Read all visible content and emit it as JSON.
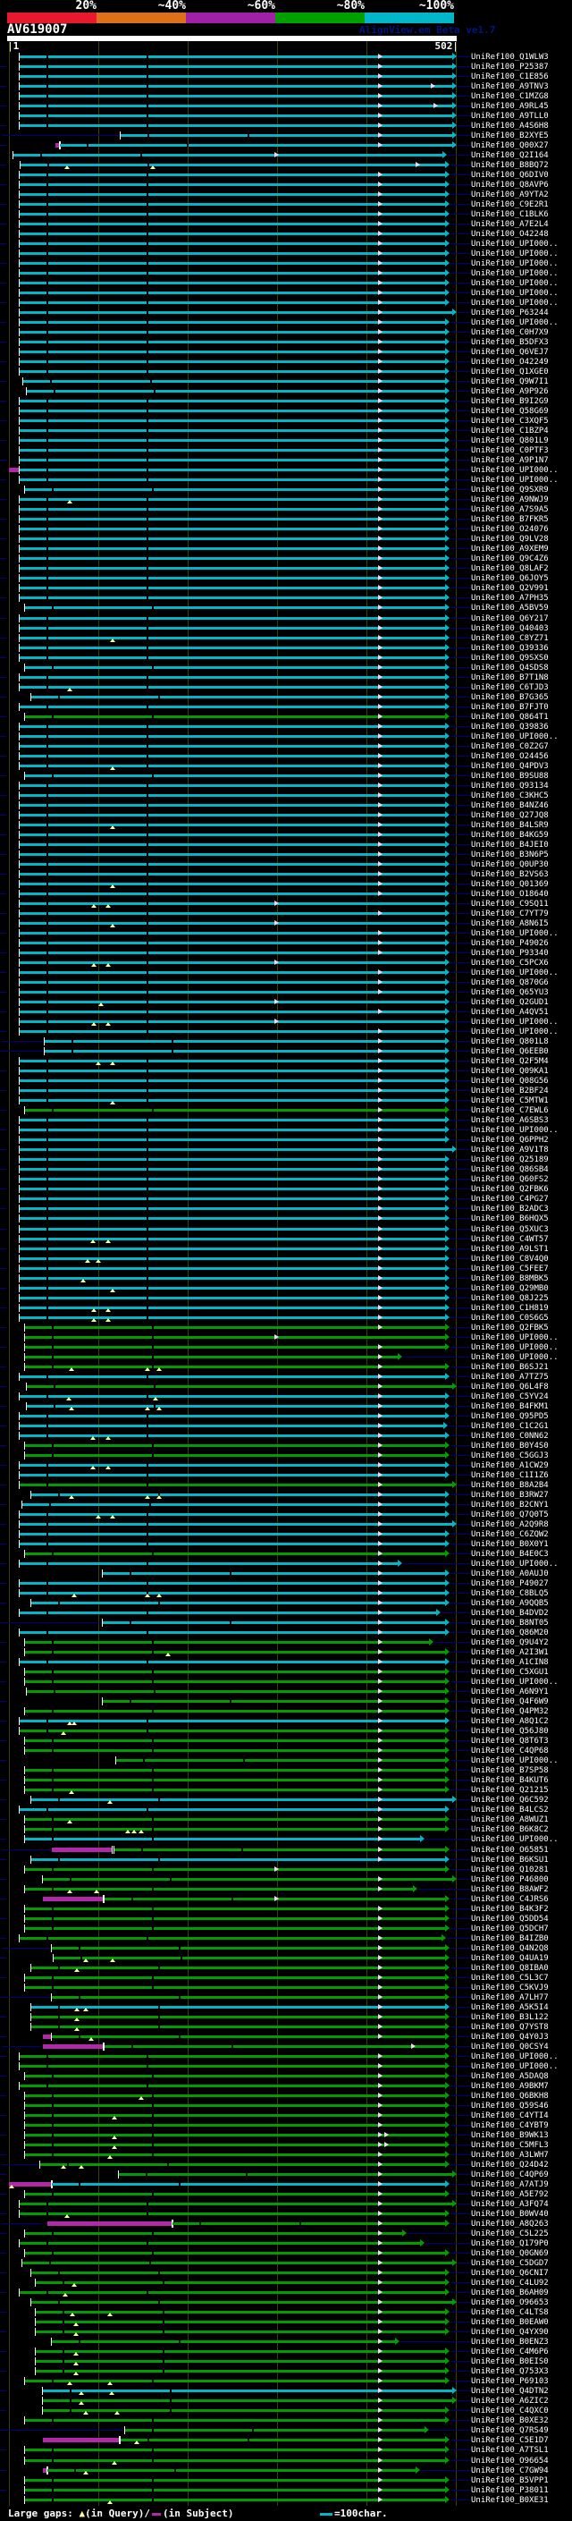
{
  "palette": {
    "bin20": "#e8192c",
    "bin40": "#dd7018",
    "bin60": "#a020a8",
    "bin80": "#00a000",
    "bin100": "#00b6c8",
    "hit_cyan": "#00b6c8",
    "hit_green": "#009d00",
    "gap_magenta": "#b128a8",
    "navy": "#000085",
    "gap_yellow": "#ffffa2",
    "grid": "#3f3f00",
    "text": "#ffffff",
    "app_text": "#001488"
  },
  "scale": {
    "labels": [
      "20%",
      "~40%",
      "~60%",
      "~80%",
      "~100%"
    ]
  },
  "header": {
    "query_id": "AV619007",
    "app_label": "AlignView.em Beta ve1.7",
    "axis_start": "|1",
    "axis_end": "502|"
  },
  "legend": {
    "prefix": "Large gaps:",
    "query_marker": "▲",
    "query_text": "(in Query)/",
    "subject_text": "(in Subject)",
    "scale_text": "=100char."
  },
  "chart_data": {
    "type": "table",
    "title": "AV619007",
    "x_axis": {
      "range": [
        1,
        502
      ],
      "start_label": "|1",
      "end_label": "502|",
      "units_note": "=100char."
    },
    "identity_bins": [
      "20%",
      "~40%",
      "~60%",
      "~80%",
      "~100%"
    ],
    "colors": "cccccccccccccccccccccccccccccccccccccccccccccccccccccccccccccccccccgcccccccccccccccccccccccccccccccccccccccgcccccccccccccccccccccgggggcgcccccggccgccccccgccccccccggcgggggcgggggggccggcgcggggggggggggggcgggggggggggggggggcggggggggggggggggggggcggggggg",
    "labels": [
      "UniRef100_Q1WLW3",
      "UniRef100_P25387",
      "UniRef100_C1E856",
      "UniRef100_A9TNV3",
      "UniRef100_C1MZG8",
      "UniRef100_A9RL45",
      "UniRef100_A9TLL0",
      "UniRef100_A4S6H8",
      "UniRef100_B2XYE5",
      "UniRef100_Q00X27",
      "UniRef100_Q2I164",
      "UniRef100_B8BQ72",
      "UniRef100_Q6DIV0",
      "UniRef100_Q8AVP6",
      "UniRef100_A9YTA2",
      "UniRef100_C9E2R1",
      "UniRef100_C1BLK6",
      "UniRef100_A7E2L4",
      "UniRef100_O42248",
      "UniRef100_UPI000..",
      "UniRef100_UPI000..",
      "UniRef100_UPI000..",
      "UniRef100_UPI000..",
      "UniRef100_UPI000..",
      "UniRef100_UPI000..",
      "UniRef100_UPI000..",
      "UniRef100_P63244",
      "UniRef100_UPI000..",
      "UniRef100_C0H7X9",
      "UniRef100_B5DFX3",
      "UniRef100_Q6VEJ7",
      "UniRef100_O42249",
      "UniRef100_Q1XGE0",
      "UniRef100_Q9W7I1",
      "UniRef100_A9P926",
      "UniRef100_B9I2G9",
      "UniRef100_Q58G69",
      "UniRef100_C3XQF5",
      "UniRef100_C1BZP4",
      "UniRef100_Q801L9",
      "UniRef100_C0PTF3",
      "UniRef100_A9P1N7",
      "UniRef100_UPI000..",
      "UniRef100_UPI000..",
      "UniRef100_Q9SXR9",
      "UniRef100_A9NWJ9",
      "UniRef100_A7S9A5",
      "UniRef100_B7FKR5",
      "UniRef100_O24076",
      "UniRef100_Q9LV28",
      "UniRef100_A9XEM9",
      "UniRef100_Q9C4Z6",
      "UniRef100_Q8LAF2",
      "UniRef100_Q6JOY5",
      "UniRef100_Q2V991",
      "UniRef100_A7PH35",
      "UniRef100_A5BV59",
      "UniRef100_Q6Y217",
      "UniRef100_Q40403",
      "UniRef100_C8YZ71",
      "UniRef100_Q39336",
      "UniRef100_Q9SXS0",
      "UniRef100_Q4SDS8",
      "UniRef100_B7T1N8",
      "UniRef100_C6TJD3",
      "UniRef100_B7G365",
      "UniRef100_B7FJT0",
      "UniRef100_Q864T1",
      "UniRef100_Q39836",
      "UniRef100_UPI000..",
      "UniRef100_C0Z2G7",
      "UniRef100_O24456",
      "UniRef100_Q4PDV3",
      "UniRef100_B9SU88",
      "UniRef100_Q93134",
      "UniRef100_C3KHC5",
      "UniRef100_B4NZ46",
      "UniRef100_Q27JQ8",
      "UniRef100_B4LSR9",
      "UniRef100_B4KG59",
      "UniRef100_B4JEI0",
      "UniRef100_B3N6P5",
      "UniRef100_Q0UP30",
      "UniRef100_B2VS63",
      "UniRef100_Q01369",
      "UniRef100_O18640",
      "UniRef100_C9SQ11",
      "UniRef100_C7YT79",
      "UniRef100_A8N6I5",
      "UniRef100_UPI000..",
      "UniRef100_P49026",
      "UniRef100_P93340",
      "UniRef100_C5PCX6",
      "UniRef100_UPI000..",
      "UniRef100_Q870G6",
      "UniRef100_Q65YU3",
      "UniRef100_Q2GUD1",
      "UniRef100_A4QV51",
      "UniRef100_UPI000..",
      "UniRef100_UPI000..",
      "UniRef100_Q801L8",
      "UniRef100_Q6EEB0",
      "UniRef100_Q2F5M4",
      "UniRef100_Q09KA1",
      "UniRef100_Q08G56",
      "UniRef100_B2BF24",
      "UniRef100_C5MTW1",
      "UniRef100_C7EWL6",
      "UniRef100_A6SBS3",
      "UniRef100_UPI000..",
      "UniRef100_Q6PPH2",
      "UniRef100_A9V1T8",
      "UniRef100_Q25189",
      "UniRef100_Q86SB4",
      "UniRef100_Q60FS2",
      "UniRef100_Q2FBK6",
      "UniRef100_C4PG27",
      "UniRef100_B2ADC3",
      "UniRef100_B6HQX5",
      "UniRef100_Q5XUC3",
      "UniRef100_C4WT57",
      "UniRef100_A9LST1",
      "UniRef100_C8V4Q0",
      "UniRef100_C5FEE7",
      "UniRef100_B8MBK5",
      "UniRef100_Q29MB0",
      "UniRef100_Q8J225",
      "UniRef100_C1H819",
      "UniRef100_C0S6G5",
      "UniRef100_Q2FBK5",
      "UniRef100_UPI000..",
      "UniRef100_UPI000..",
      "UniRef100_UPI000..",
      "UniRef100_B6SJ21",
      "UniRef100_A7TZ75",
      "UniRef100_Q6L4F8",
      "UniRef100_C5YV24",
      "UniRef100_B4FKM1",
      "UniRef100_Q95PD5",
      "UniRef100_C1C2G1",
      "UniRef100_C0NN62",
      "UniRef100_B0Y4S0",
      "UniRef100_C5GGJ3",
      "UniRef100_A1CW29",
      "UniRef100_C1I1Z6",
      "UniRef100_B8A2B4",
      "UniRef100_B3RW27",
      "UniRef100_B2CNY1",
      "UniRef100_Q7Q0T5",
      "UniRef100_A2Q9R8",
      "UniRef100_C6ZQW2",
      "UniRef100_B0X0Y1",
      "UniRef100_B4E0C3",
      "UniRef100_UPI000..",
      "UniRef100_A0AUJ0",
      "UniRef100_P49027",
      "UniRef100_C8BLQ5",
      "UniRef100_A9QQB5",
      "UniRef100_B4DVD2",
      "UniRef100_B8NT05",
      "UniRef100_Q86M20",
      "UniRef100_Q9U4Y2",
      "UniRef100_A2I3W1",
      "UniRef100_A1CIN8",
      "UniRef100_C5XGU1",
      "UniRef100_UPI000..",
      "UniRef100_A6N9Y1",
      "UniRef100_Q4F6W9",
      "UniRef100_Q4PM32",
      "UniRef100_A8Q1C2",
      "UniRef100_Q56J80",
      "UniRef100_Q8T6T3",
      "UniRef100_C4QP68",
      "UniRef100_UPI000..",
      "UniRef100_B7SP58",
      "UniRef100_B4KUT6",
      "UniRef100_Q21215",
      "UniRef100_Q6C592",
      "UniRef100_B4LCS2",
      "UniRef100_A8WUZ1",
      "UniRef100_B6K8C2",
      "UniRef100_UPI000..",
      "UniRef100_O65851",
      "UniRef100_B6KSU1",
      "UniRef100_Q10281",
      "UniRef100_P46800",
      "UniRef100_B8AWF2",
      "UniRef100_C4JRS6",
      "UniRef100_B4K3F2",
      "UniRef100_Q5DD54",
      "UniRef100_Q5DCH7",
      "UniRef100_B4IZB0",
      "UniRef100_Q4N2Q8",
      "UniRef100_Q4UA19",
      "UniRef100_Q8IBA0",
      "UniRef100_C5L3C7",
      "UniRef100_C5KVJ9",
      "UniRef100_A7LH77",
      "UniRef100_A5K5I4",
      "UniRef100_B3L122",
      "UniRef100_Q7YST8",
      "UniRef100_Q4Y0J3",
      "UniRef100_Q0CSY4",
      "UniRef100_UPI000..",
      "UniRef100_UPI000..",
      "UniRef100_A5DAQ8",
      "UniRef100_A9BKM7",
      "UniRef100_Q6BKH8",
      "UniRef100_Q59S46",
      "UniRef100_C4YTI4",
      "UniRef100_C4YBT9",
      "UniRef100_B9WK13",
      "UniRef100_C5MFL3",
      "UniRef100_A3LWH7",
      "UniRef100_Q24D42",
      "UniRef100_C4QP69",
      "UniRef100_A7ATJ9",
      "UniRef100_A5E792",
      "UniRef100_A3FQ74",
      "UniRef100_B0WV40",
      "UniRef100_A8Q263",
      "UniRef100_C5L225",
      "UniRef100_Q179P0",
      "UniRef100_Q0GN69",
      "UniRef100_C5DGD7",
      "UniRef100_Q6CNI7",
      "UniRef100_C4LU92",
      "UniRef100_B6AH09",
      "UniRef100_O96653",
      "UniRef100_C4LTS8",
      "UniRef100_B0EAW0",
      "UniRef100_Q4YX90",
      "UniRef100_B0ENZ3",
      "UniRef100_C4M6P6",
      "UniRef100_B0EIS0",
      "UniRef100_Q753X3",
      "UniRef100_P69103",
      "UniRef100_Q4DTN2",
      "UniRef100_A6ZIC2",
      "UniRef100_C4QXC0",
      "UniRef100_B0XE32",
      "UniRef100_Q7RS49",
      "UniRef100_C5E1D7",
      "UniRef100_A7TSL1",
      "UniRef100_O96654",
      "UniRef100_C7GW94",
      "UniRef100_B5VPP1",
      "UniRef100_P38011",
      "UniRef100_B0XE31"
    ],
    "overrides": {
      "1": {
        "e": 511
      },
      "2": {
        "e": 511
      },
      "3": {
        "e": 511
      },
      "4": {
        "e": 511,
        "ha": [
          423,
          482
        ]
      },
      "5": {
        "e": 511
      },
      "6": {
        "e": 511,
        "ha": [
          423,
          485
        ]
      },
      "7": {
        "e": 511
      },
      "8": {
        "e": 511
      },
      "9": {
        "e": 511,
        "s": 135,
        "ld": 133
      },
      "10": {
        "e": 511,
        "s": 67,
        "p": [
          62,
          67
        ]
      },
      "11": {
        "s": 15,
        "e": 500,
        "ha": [
          307
        ]
      },
      "12": {
        "s": 23,
        "ya": [
          72,
          168
        ],
        "ha": [
          465
        ]
      },
      "27": {
        "e": 511
      },
      "34": {
        "s": 26
      },
      "35": {
        "s": 30
      },
      "43": {
        "p": [
          10,
          21
        ]
      },
      "45": {
        "s": 28
      },
      "46": {
        "ya": [
          75
        ]
      },
      "57": {
        "s": 28
      },
      "60": {
        "ya": [
          123
        ]
      },
      "63": {
        "s": 28
      },
      "65": {
        "ya": [
          75
        ]
      },
      "66": {
        "s": 35
      },
      "73": {
        "ya": [
          123
        ]
      },
      "74": {
        "s": 28
      },
      "79": {
        "ya": [
          123
        ]
      },
      "85": {
        "ya": [
          123
        ]
      },
      "87": {
        "ya": [
          102,
          118
        ],
        "ha": [
          307
        ]
      },
      "89": {
        "ya": [
          123
        ],
        "ha": [
          307
        ]
      },
      "93": {
        "ya": [
          102,
          118
        ],
        "ha": [
          307
        ]
      },
      "97": {
        "ya": [
          110
        ],
        "ha": [
          307
        ]
      },
      "99": {
        "ya": [
          102,
          118
        ],
        "ha": [
          307
        ]
      },
      "101": {
        "s": 50,
        "ld": 48
      },
      "102": {
        "s": 50,
        "ld": 48
      },
      "103": {
        "ya": [
          107,
          123
        ]
      },
      "107": {
        "ya": [
          123
        ]
      },
      "112": {
        "e": 511
      },
      "121": {
        "ya": [
          101,
          118
        ]
      },
      "123": {
        "ya": [
          95,
          107
        ]
      },
      "125": {
        "ya": [
          90
        ]
      },
      "126": {
        "ya": [
          123
        ]
      },
      "128": {
        "ya": [
          102,
          118
        ]
      },
      "129": {
        "ya": [
          102,
          118
        ]
      },
      "131": {
        "ha": [
          307
        ]
      },
      "133": {
        "e": 450
      },
      "134": {
        "ya": [
          77,
          162,
          175
        ]
      },
      "135": {
        "s": 22
      },
      "136": {
        "s": 30,
        "e": 511
      },
      "137": {
        "s": 22,
        "ya": [
          74,
          171
        ]
      },
      "138": {
        "s": 30,
        "ya": [
          77,
          162,
          175
        ]
      },
      "140": {
        "e": 501
      },
      "141": {
        "ya": [
          101,
          118
        ]
      },
      "144": {
        "ya": [
          101,
          118
        ]
      },
      "146": {
        "s": 22,
        "e": 511
      },
      "147": {
        "s": 35,
        "ya": [
          77,
          162,
          175
        ]
      },
      "148": {
        "s": 25
      },
      "149": {
        "ya": [
          107,
          123
        ]
      },
      "150": {
        "e": 511
      },
      "154": {
        "e": 450
      },
      "155": {
        "s": 115
      },
      "157": {
        "ya": [
          80,
          162,
          175
        ]
      },
      "158": {
        "s": 35
      },
      "159": {
        "e": 493
      },
      "160": {
        "s": 115,
        "ld": 113
      },
      "162": {
        "s": 28,
        "e": 485
      },
      "163": {
        "ya": [
          185
        ]
      },
      "167": {
        "s": 30
      },
      "168": {
        "s": 115
      },
      "170": {
        "ya": [
          75,
          80
        ]
      },
      "171": {
        "s": 22,
        "ya": [
          68
        ]
      },
      "174": {
        "s": 130
      },
      "177": {
        "ya": [
          77
        ]
      },
      "178": {
        "s": 35,
        "e": 511,
        "ya": [
          120
        ]
      },
      "180": {
        "ya": [
          75
        ]
      },
      "181": {
        "ya": [
          140,
          147,
          155
        ]
      },
      "182": {
        "s": 28,
        "e": 475
      },
      "183": {
        "s": 128,
        "ld": 56,
        "p": [
          58,
          125
        ]
      },
      "184": {
        "s": 35
      },
      "185": {
        "ha": [
          307
        ]
      },
      "186": {
        "s": 48,
        "e": 511
      },
      "187": {
        "e": 467,
        "ya": [
          75,
          105
        ]
      },
      "188": {
        "s": 117,
        "p": [
          48,
          115
        ],
        "ha": [
          307
        ]
      },
      "192": {
        "s": 22,
        "e": 499
      },
      "193": {
        "s": 58,
        "ld": 56
      },
      "194": {
        "s": 60,
        "ya": [
          93,
          123
        ]
      },
      "195": {
        "s": 35,
        "ya": [
          83
        ]
      },
      "198": {
        "s": 58,
        "ld": 56
      },
      "199": {
        "s": 35,
        "ya": [
          83,
          93
        ]
      },
      "200": {
        "s": 35,
        "ya": [
          83
        ]
      },
      "201": {
        "s": 35,
        "ya": [
          83
        ]
      },
      "202": {
        "s": 58,
        "p": [
          48,
          57
        ],
        "ya": [
          99
        ]
      },
      "203": {
        "s": 117,
        "ld": 46,
        "p": [
          48,
          115
        ],
        "ha": [
          460
        ]
      },
      "204": {
        "s": 22
      },
      "205": {
        "s": 22
      },
      "207": {
        "s": 22
      },
      "208": {
        "ya": [
          155
        ]
      },
      "210": {
        "ya": [
          125
        ]
      },
      "212": {
        "ya": [
          125
        ],
        "ha": [
          423,
          430
        ]
      },
      "213": {
        "ya": [
          125
        ],
        "ha": [
          423,
          430
        ]
      },
      "214": {
        "ya": [
          120
        ]
      },
      "215": {
        "s": 45,
        "ld": 43,
        "ya": [
          68,
          88
        ]
      },
      "216": {
        "s": 133,
        "e": 511
      },
      "217": {
        "s": 58,
        "p": [
          10,
          58
        ],
        "ya": [
          10
        ]
      },
      "219": {
        "s": 22,
        "e": 511
      },
      "220": {
        "s": 22,
        "ya": [
          72
        ]
      },
      "221": {
        "s": 193,
        "ld": 46,
        "p": [
          53,
          193
        ]
      },
      "222": {
        "e": 455
      },
      "223": {
        "s": 22,
        "e": 475
      },
      "225": {
        "s": 25,
        "e": 511
      },
      "226": {
        "s": 35
      },
      "227": {
        "s": 40,
        "ya": [
          80
        ]
      },
      "228": {
        "s": 22,
        "ya": [
          70
        ]
      },
      "229": {
        "s": 35,
        "e": 511
      },
      "230": {
        "s": 40,
        "ya": [
          78,
          120
        ]
      },
      "231": {
        "s": 40,
        "ya": [
          82
        ]
      },
      "232": {
        "s": 40,
        "ya": [
          82
        ]
      },
      "233": {
        "s": 58,
        "e": 447
      },
      "234": {
        "s": 40,
        "ya": [
          82
        ]
      },
      "235": {
        "s": 40,
        "ya": [
          82
        ]
      },
      "236": {
        "s": 40,
        "ya": [
          82
        ]
      },
      "237": {
        "ya": [
          75,
          120
        ]
      },
      "238": {
        "s": 48,
        "e": 511,
        "ya": [
          88,
          122
        ]
      },
      "239": {
        "s": 48,
        "e": 511,
        "ya": [
          88
        ]
      },
      "240": {
        "s": 48,
        "ya": [
          93,
          128
        ]
      },
      "242": {
        "s": 140,
        "ld": 138,
        "e": 480
      },
      "243": {
        "s": 135,
        "p": [
          48,
          133
        ],
        "ya": [
          150
        ]
      },
      "245": {
        "ya": [
          125
        ]
      },
      "246": {
        "s": 53,
        "p": [
          48,
          53
        ],
        "e": 470,
        "ya": [
          93
        ]
      },
      "247": {
        "s": 28
      },
      "248": {
        "s": 28
      },
      "249": {
        "s": 28,
        "ya": [
          120
        ]
      }
    }
  }
}
